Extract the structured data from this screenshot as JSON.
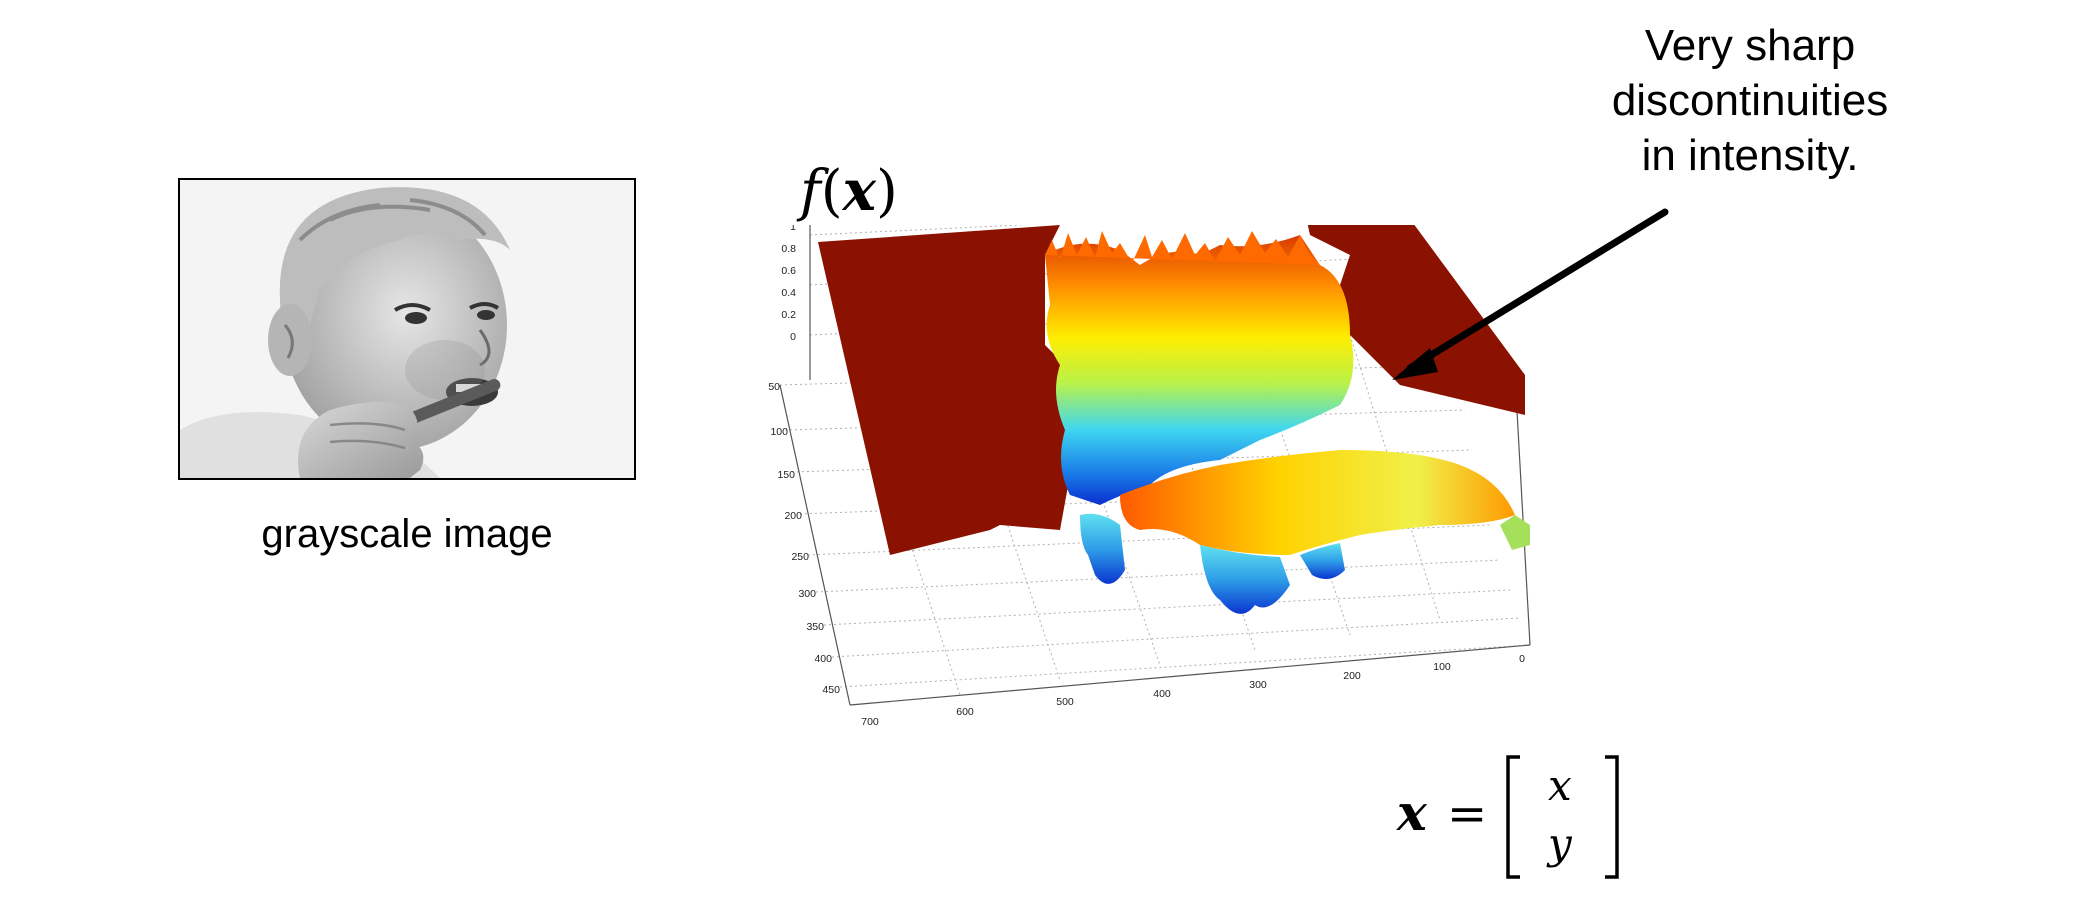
{
  "image_panel": {
    "caption": "grayscale image",
    "picture": "grayscale-photo-of-child-brushing-teeth"
  },
  "surface_plot": {
    "function_label": "f(x)",
    "function_label_parts": {
      "f": "f",
      "open": "(",
      "x": "x",
      "close": ")"
    },
    "z_ticks": [
      "1",
      "0.8",
      "0.6",
      "0.4",
      "0.2",
      "0"
    ],
    "y_ticks": [
      "50",
      "100",
      "150",
      "200",
      "250",
      "300",
      "350",
      "400",
      "450"
    ],
    "x_ticks": [
      "700",
      "600",
      "500",
      "400",
      "300",
      "200",
      "100",
      "0"
    ],
    "colormap": "jet",
    "plateau_color": "#8B1200"
  },
  "annotation": {
    "lines": [
      "Very sharp",
      "discontinuities",
      "in intensity."
    ],
    "arrow": "arrow-pointing-to-discontinuity"
  },
  "vector_definition": {
    "lhs": "x",
    "equals": "=",
    "top": "x",
    "bottom": "y"
  }
}
